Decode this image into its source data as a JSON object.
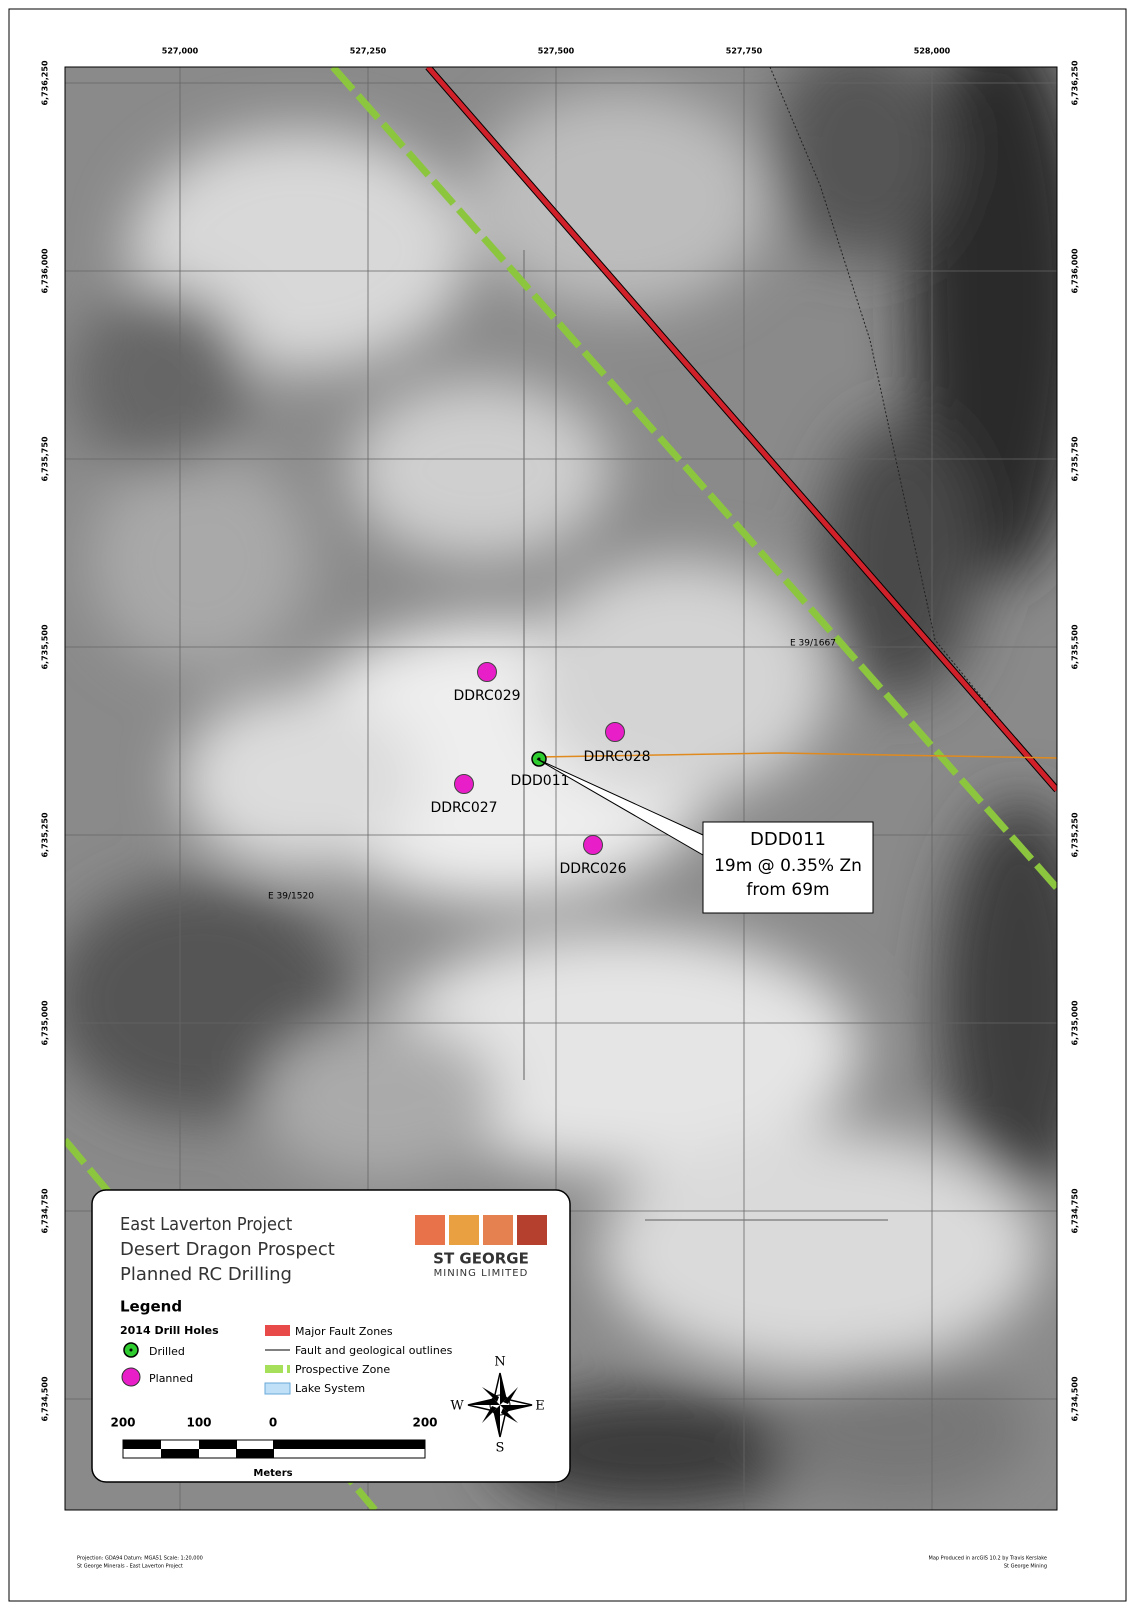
{
  "grid": {
    "eastings": [
      {
        "value": 527000,
        "label": "527,000"
      },
      {
        "value": 527250,
        "label": "527,250"
      },
      {
        "value": 527500,
        "label": "527,500"
      },
      {
        "value": 527750,
        "label": "527,750"
      },
      {
        "value": 528000,
        "label": "528,000"
      }
    ],
    "northings": [
      {
        "value": 6736250,
        "label": "6,736,250"
      },
      {
        "value": 6736000,
        "label": "6,736,000"
      },
      {
        "value": 6735750,
        "label": "6,735,750"
      },
      {
        "value": 6735500,
        "label": "6,735,500"
      },
      {
        "value": 6735250,
        "label": "6,735,250"
      },
      {
        "value": 6735000,
        "label": "6,735,000"
      },
      {
        "value": 6734750,
        "label": "6,734,750"
      },
      {
        "value": 6734500,
        "label": "6,734,500"
      }
    ]
  },
  "drill_holes": [
    {
      "label": "DDRC029",
      "status": "Planned"
    },
    {
      "label": "DDRC028",
      "status": "Planned"
    },
    {
      "label": "DDD011",
      "status": "Drilled"
    },
    {
      "label": "DDRC027",
      "status": "Planned"
    },
    {
      "label": "DDRC026",
      "status": "Planned"
    }
  ],
  "callout": {
    "title": "DDD011",
    "lines": [
      "19m @ 0.35% Zn",
      "from 69m"
    ]
  },
  "tenements": [
    "E 39/1667",
    "E 39/1520"
  ],
  "legend": {
    "title": [
      "East Laverton Project",
      "Desert Dragon Prospect",
      "Planned RC Drilling"
    ],
    "logo": [
      "ST GEORGE",
      "MINING LIMITED"
    ],
    "heading": "Legend",
    "drill_heading": "2014 Drill Holes",
    "drilled": "Drilled",
    "planned": "Planned",
    "items": [
      "Major Fault Zones",
      "Fault and geological outlines",
      "Prospective Zone",
      "Lake System"
    ],
    "scale": {
      "labels": [
        "200",
        "100",
        "0",
        "200"
      ],
      "unit": "Meters"
    },
    "compass": [
      "N",
      "E",
      "S",
      "W"
    ]
  },
  "footer": {
    "left": [
      "Projection: GDA94  Datum: MGA51  Scale: 1:20,000",
      "St George Minerals - East Laverton Project"
    ],
    "right": [
      "Map Produced in arcGIS 10.2 by Travis Kerslake",
      "St George Mining"
    ]
  }
}
